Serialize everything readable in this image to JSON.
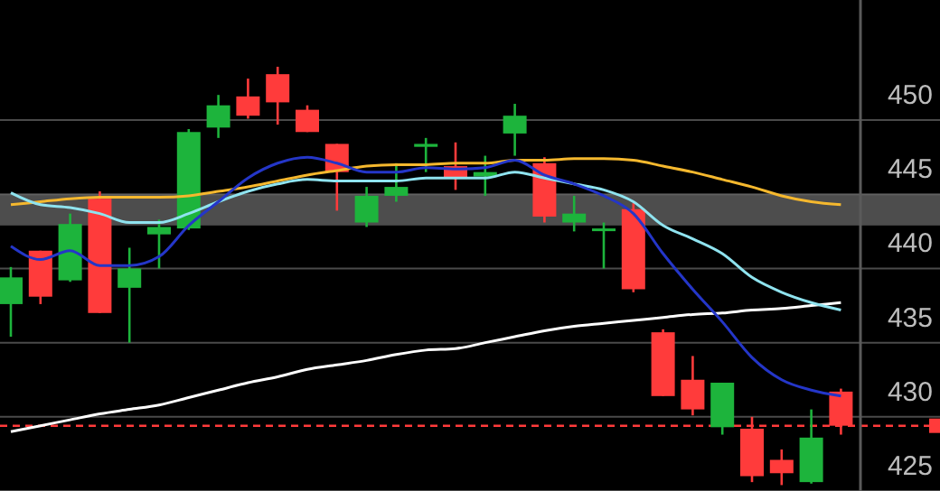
{
  "chart_data": {
    "type": "candlestick",
    "categories": [
      null,
      null,
      null,
      null,
      null,
      null,
      null,
      null,
      null,
      null,
      null,
      null,
      null,
      null,
      null,
      null,
      null,
      null,
      null,
      null,
      null,
      null,
      null,
      null,
      null,
      null,
      null,
      null,
      null
    ],
    "ohlc": [
      [
        437.6,
        440.1,
        435.4,
        439.4
      ],
      [
        441.2,
        441.2,
        437.6,
        438.1
      ],
      [
        439.2,
        443.7,
        439.1,
        443.0
      ],
      [
        444.7,
        445.2,
        437.0,
        437.0
      ],
      [
        438.7,
        441.4,
        435.0,
        440.0
      ],
      [
        442.3,
        443.3,
        440.0,
        442.8
      ],
      [
        442.7,
        449.4,
        442.6,
        449.2
      ],
      [
        449.5,
        451.7,
        448.8,
        451.0
      ],
      [
        451.6,
        452.8,
        450.1,
        450.3
      ],
      [
        453.1,
        453.6,
        449.7,
        451.2
      ],
      [
        450.7,
        451.0,
        449.2,
        449.2
      ],
      [
        448.4,
        448.4,
        443.9,
        446.5
      ],
      [
        443.1,
        445.5,
        442.8,
        444.9
      ],
      [
        444.9,
        447.1,
        444.5,
        445.5
      ],
      [
        448.2,
        448.8,
        446.5,
        448.4
      ],
      [
        446.9,
        448.5,
        445.3,
        446.1
      ],
      [
        446.2,
        447.6,
        444.9,
        446.5
      ],
      [
        449.1,
        451.1,
        447.6,
        450.3
      ],
      [
        447.1,
        447.5,
        443.1,
        443.5
      ],
      [
        443.1,
        444.9,
        442.5,
        443.7
      ],
      [
        442.6,
        443.1,
        440.0,
        442.7
      ],
      [
        444.0,
        444.4,
        438.4,
        438.6
      ],
      [
        435.7,
        435.9,
        431.4,
        431.4
      ],
      [
        432.5,
        434.1,
        430.1,
        430.5
      ],
      [
        429.3,
        432.3,
        428.8,
        432.3
      ],
      [
        429.2,
        430.0,
        425.6,
        426.0
      ],
      [
        427.1,
        427.8,
        425.4,
        426.2
      ],
      [
        425.6,
        430.5,
        425.5,
        428.6
      ],
      [
        431.7,
        431.9,
        428.8,
        429.4
      ]
    ],
    "colors": [
      "#1db43c",
      "#ff3b3b",
      "#1db43c",
      "#ff3b3b",
      "#1db43c",
      "#1db43c",
      "#1db43c",
      "#1db43c",
      "#ff3b3b",
      "#ff3b3b",
      "#ff3b3b",
      "#ff3b3b",
      "#1db43c",
      "#1db43c",
      "#1db43c",
      "#ff3b3b",
      "#1db43c",
      "#1db43c",
      "#ff3b3b",
      "#1db43c",
      "#1db43c",
      "#ff3b3b",
      "#ff3b3b",
      "#ff3b3b",
      "#1db43c",
      "#ff3b3b",
      "#ff3b3b",
      "#1db43c",
      "#ff3b3b"
    ],
    "series": [
      {
        "type": "line",
        "color": "#ffffff",
        "values": [
          429.0,
          429.4,
          429.8,
          430.2,
          430.5,
          430.8,
          431.3,
          431.8,
          432.3,
          432.7,
          433.2,
          433.5,
          433.8,
          434.2,
          434.5,
          434.6,
          435.0,
          435.4,
          435.8,
          436.1,
          436.3,
          436.5,
          436.7,
          436.9,
          437.0,
          437.2,
          437.3,
          437.5,
          437.7
        ]
      },
      {
        "type": "line",
        "color": "#f5b82e",
        "values": [
          444.3,
          444.5,
          444.7,
          444.8,
          444.8,
          444.8,
          444.9,
          445.2,
          445.5,
          445.9,
          446.3,
          446.6,
          446.9,
          447.0,
          447.0,
          447.1,
          447.1,
          447.3,
          447.3,
          447.4,
          447.4,
          447.3,
          446.9,
          446.5,
          446.0,
          445.5,
          444.9,
          444.5,
          444.3
        ]
      },
      {
        "type": "line",
        "color": "#8fe3ef",
        "values": [
          445.1,
          444.3,
          444.1,
          443.7,
          443.1,
          443.1,
          443.7,
          444.5,
          445.2,
          445.7,
          446.0,
          445.9,
          445.9,
          445.9,
          446.1,
          446.1,
          446.1,
          446.5,
          446.1,
          445.7,
          445.3,
          444.5,
          442.9,
          442.0,
          441.0,
          439.4,
          438.4,
          437.7,
          437.2
        ]
      },
      {
        "type": "line",
        "color": "#2436c8",
        "values": [
          441.5,
          440.6,
          441.2,
          440.2,
          440.2,
          440.8,
          442.9,
          444.5,
          446.1,
          447.1,
          447.5,
          447.1,
          446.5,
          446.5,
          446.8,
          446.7,
          446.8,
          447.3,
          446.3,
          445.7,
          444.9,
          443.7,
          441.0,
          438.6,
          436.4,
          434.0,
          432.5,
          431.8,
          431.4
        ]
      }
    ],
    "ylim": [
      425,
      458.1
    ],
    "yticks": [
      425,
      430,
      435,
      440,
      445,
      450
    ],
    "grid": "y",
    "bands": [
      {
        "axis": "y",
        "from": 442.9,
        "to": 445,
        "color": "#808080"
      }
    ],
    "ref_lines": [
      {
        "axis": "y",
        "value": 429.4,
        "color": "#ff3b3b",
        "line_style": "dashed"
      }
    ]
  }
}
